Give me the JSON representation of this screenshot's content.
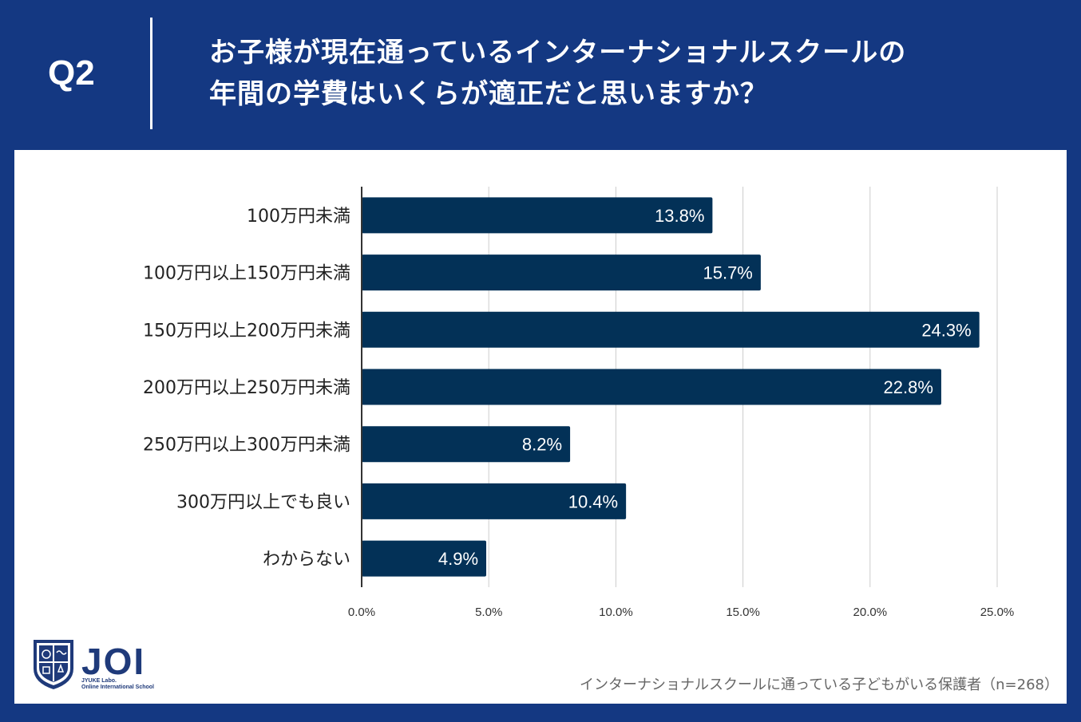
{
  "header": {
    "question_label": "Q2",
    "title_lines": [
      "お子様が現在通っているインターナショナルスクールの",
      "年間の学費はいくらが適正だと思いますか？"
    ]
  },
  "colors": {
    "background": "#143882",
    "bar": "#033157",
    "grid": "#cccccc",
    "bar_label": "#ffffff"
  },
  "chart_data": {
    "type": "bar",
    "orientation": "horizontal",
    "categories": [
      "100万円未満",
      "100万円以上150万円未満",
      "150万円以上200万円未満",
      "200万円以上250万円未満",
      "250万円以上300万円未満",
      "300万円以上でも良い",
      "わからない"
    ],
    "values": [
      13.8,
      15.7,
      24.3,
      22.8,
      8.2,
      10.4,
      4.9
    ],
    "value_labels": [
      "13.8%",
      "15.7%",
      "24.3%",
      "22.8%",
      "8.2%",
      "10.4%",
      "4.9%"
    ],
    "xlim": [
      0,
      25
    ],
    "xticks": [
      0,
      5,
      10,
      15,
      20,
      25
    ],
    "xtick_labels": [
      "0.0%",
      "5.0%",
      "10.0%",
      "15.0%",
      "20.0%",
      "25.0%"
    ],
    "grid": true,
    "title": "",
    "xlabel": "",
    "ylabel": ""
  },
  "logo": {
    "name": "JOI",
    "subtitle_line1": "JYUKE Labo.",
    "subtitle_line2": "Online International School"
  },
  "footnote": "インターナショナルスクールに通っている子どもがいる保護者（n=268）"
}
